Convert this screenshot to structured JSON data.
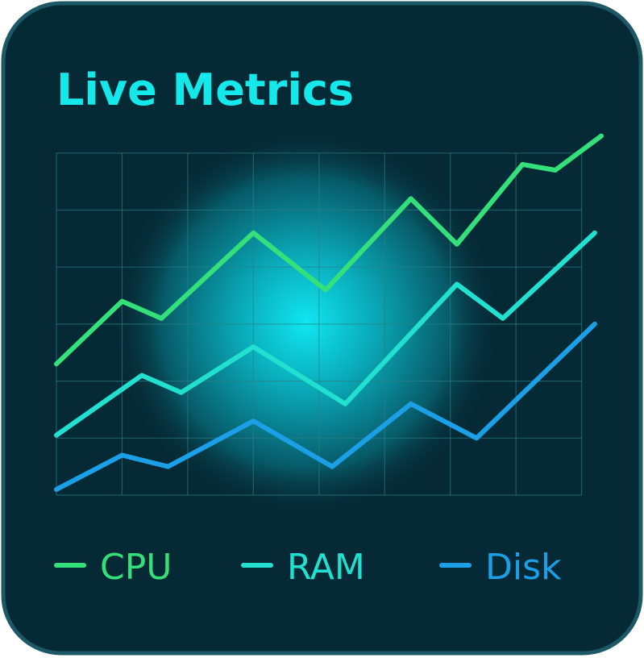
{
  "chart_data": {
    "type": "line",
    "title": "Live Metrics",
    "xlim": [
      0,
      8.3
    ],
    "xticks": [
      0,
      1,
      2,
      3,
      4,
      5,
      6,
      7,
      8
    ],
    "ylim": [
      0,
      6.5
    ],
    "yticks": [
      0,
      1,
      2,
      3,
      4,
      5,
      6
    ],
    "grid": true,
    "series": [
      {
        "name": "CPU",
        "color": "#34e07a",
        "x": [
          0,
          1,
          1.6,
          3,
          4.1,
          5.4,
          6.1,
          7.1,
          7.6,
          8.3
        ],
        "values": [
          2.3,
          3.4,
          3.1,
          4.6,
          3.6,
          5.2,
          4.4,
          5.8,
          5.7,
          6.3
        ]
      },
      {
        "name": "RAM",
        "color": "#22e0d0",
        "x": [
          0,
          1.3,
          1.9,
          3,
          4.4,
          6.1,
          6.8,
          8.2
        ],
        "values": [
          1.05,
          2.1,
          1.8,
          2.6,
          1.6,
          3.7,
          3.1,
          4.6
        ]
      },
      {
        "name": "Disk",
        "color": "#1ba0e8",
        "x": [
          0,
          1,
          1.7,
          3,
          4.2,
          5.4,
          6.4,
          8.2
        ],
        "values": [
          0.1,
          0.7,
          0.5,
          1.3,
          0.5,
          1.6,
          1.0,
          3.0
        ]
      }
    ]
  }
}
